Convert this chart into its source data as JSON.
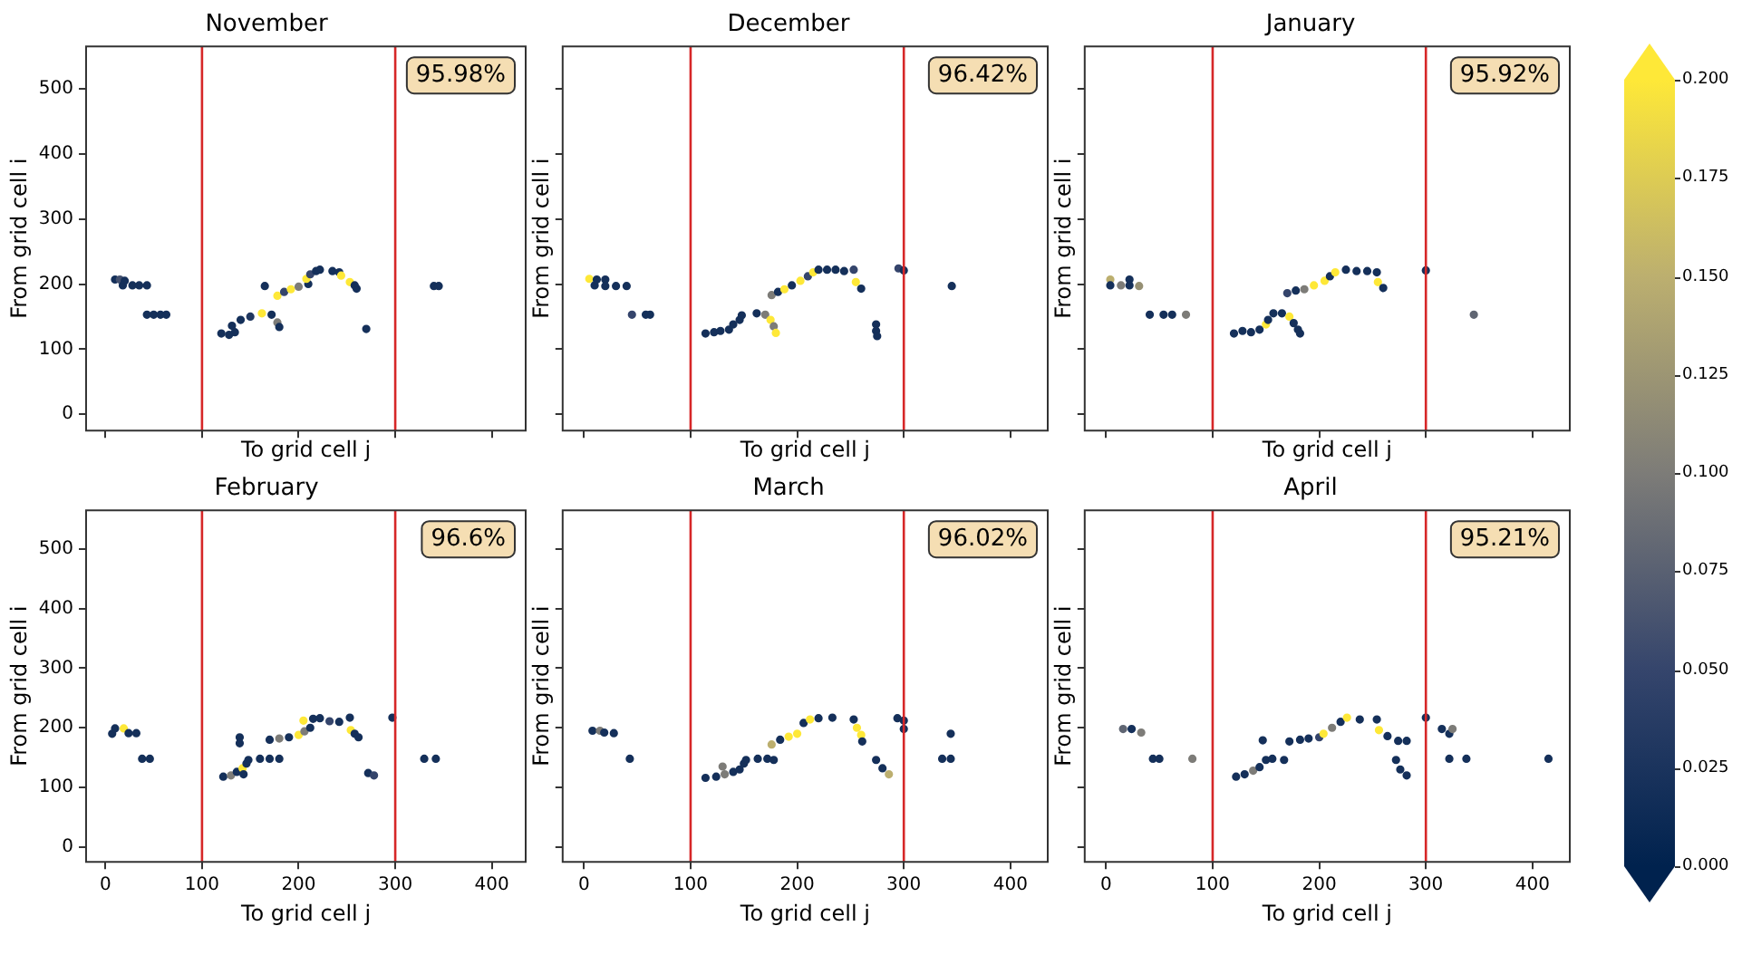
{
  "chart_data": [
    {
      "type": "scatter",
      "title": "November",
      "xlabel": "To grid cell j",
      "ylabel": "From grid cell i",
      "marker": "circle",
      "tick_labels": "y",
      "xlim": [
        -20,
        435
      ],
      "ylim": [
        -25,
        565
      ],
      "xticks": [
        0,
        100,
        200,
        300,
        400
      ],
      "yticks": [
        0,
        100,
        200,
        300,
        400,
        500
      ],
      "clim": [
        0,
        0.2
      ],
      "cticks": [
        {
          "value": 0,
          "label": "0.000"
        },
        {
          "value": 0.025,
          "label": "0.025"
        },
        {
          "value": 0.05,
          "label": "0.050"
        },
        {
          "value": 0.075,
          "label": "0.075"
        },
        {
          "value": 0.1,
          "label": "0.100"
        },
        {
          "value": 0.125,
          "label": "0.125"
        },
        {
          "value": 0.15,
          "label": "0.150"
        },
        {
          "value": 0.175,
          "label": "0.175"
        },
        {
          "value": 0.2,
          "label": "0.200"
        }
      ],
      "ref_lines": [
        {
          "axis": "x",
          "value": 100,
          "color": "#d62728"
        },
        {
          "axis": "x",
          "value": 300,
          "color": "#d62728"
        }
      ],
      "annotations": [
        "95.98%"
      ],
      "x": [
        10,
        15,
        20,
        18,
        28,
        35,
        43,
        43,
        50,
        57,
        63,
        120,
        128,
        134,
        131,
        140,
        150,
        162,
        172,
        178,
        180,
        165,
        178,
        185,
        192,
        200,
        210,
        208,
        212,
        218,
        222,
        235,
        242,
        244,
        253,
        258,
        260,
        270,
        340,
        345
      ],
      "values": [
        207,
        207,
        205,
        198,
        198,
        198,
        198,
        153,
        153,
        153,
        153,
        124,
        122,
        126,
        136,
        145,
        150,
        155,
        153,
        141,
        134,
        197,
        182,
        188,
        192,
        196,
        200,
        208,
        215,
        220,
        222,
        220,
        218,
        213,
        203,
        198,
        193,
        131,
        197,
        197
      ],
      "cvalues": [
        0.02,
        0.06,
        0.02,
        0.02,
        0.02,
        0.02,
        0.02,
        0.02,
        0.02,
        0.02,
        0.02,
        0.02,
        0.02,
        0.02,
        0.02,
        0.02,
        0.03,
        0.2,
        0.02,
        0.1,
        0.02,
        0.02,
        0.2,
        0.05,
        0.2,
        0.1,
        0.02,
        0.2,
        0.05,
        0.02,
        0.02,
        0.02,
        0.02,
        0.2,
        0.2,
        0.02,
        0.02,
        0.02,
        0.02,
        0.02
      ]
    },
    {
      "type": "scatter",
      "title": "December",
      "xlabel": "To grid cell j",
      "ylabel": "From grid cell i",
      "marker": "circle",
      "tick_labels": false,
      "xlim": [
        -20,
        435
      ],
      "ylim": [
        -25,
        565
      ],
      "xticks": [
        0,
        100,
        200,
        300,
        400
      ],
      "yticks": [
        0,
        100,
        200,
        300,
        400,
        500
      ],
      "ref_lines": [
        {
          "axis": "x",
          "value": 100,
          "color": "#d62728"
        },
        {
          "axis": "x",
          "value": 300,
          "color": "#d62728"
        }
      ],
      "annotations": [
        "96.42%"
      ],
      "x": [
        5,
        12,
        20,
        10,
        20,
        30,
        40,
        45,
        58,
        62,
        114,
        122,
        128,
        136,
        140,
        146,
        148,
        162,
        170,
        175,
        178,
        180,
        176,
        182,
        188,
        195,
        203,
        210,
        215,
        220,
        228,
        236,
        244,
        253,
        255,
        260,
        274,
        274,
        275,
        295,
        300,
        345
      ],
      "values": [
        208,
        207,
        207,
        198,
        197,
        197,
        197,
        153,
        153,
        153,
        124,
        126,
        128,
        130,
        138,
        145,
        152,
        155,
        153,
        145,
        135,
        125,
        183,
        188,
        192,
        198,
        205,
        212,
        218,
        222,
        222,
        222,
        220,
        222,
        203,
        193,
        138,
        128,
        120,
        224,
        221,
        197
      ],
      "colors": [
        "#fee838",
        "#15305a",
        "#15305a",
        "#15305a",
        "#15305a",
        "#15305a",
        "#15305a",
        "#35456c",
        "#15305a",
        "#15305a",
        "#15305a",
        "#15305a",
        "#15305a",
        "#15305a",
        "#15305a",
        "#15305a",
        "#15305a",
        "#15305a",
        "#7d7c78",
        "#fee838",
        "#7d7c78",
        "#fee838",
        "#7d7c78",
        "#15305a",
        "#fee838",
        "#15305a",
        "#fee838",
        "#35456c",
        "#fee838",
        "#15305a",
        "#15305a",
        "#15305a",
        "#15305a",
        "#35456c",
        "#fee838",
        "#15305a",
        "#15305a",
        "#15305a",
        "#15305a",
        "#35456c",
        "#15305a",
        "#15305a"
      ]
    },
    {
      "type": "scatter",
      "title": "January",
      "xlabel": "To grid cell j",
      "ylabel": "From grid cell i",
      "marker": "circle",
      "tick_labels": false,
      "xlim": [
        -20,
        435
      ],
      "ylim": [
        -25,
        565
      ],
      "xticks": [
        0,
        100,
        200,
        300,
        400
      ],
      "yticks": [
        0,
        100,
        200,
        300,
        400,
        500
      ],
      "ref_lines": [
        {
          "axis": "x",
          "value": 100,
          "color": "#d62728"
        },
        {
          "axis": "x",
          "value": 300,
          "color": "#d62728"
        }
      ],
      "annotations": [
        "95.92%"
      ],
      "x": [
        4,
        22,
        4,
        14,
        22,
        31,
        41,
        54,
        62,
        75,
        120,
        128,
        136,
        144,
        150,
        152,
        157,
        165,
        172,
        176,
        180,
        182,
        170,
        178,
        186,
        195,
        205,
        210,
        215,
        225,
        235,
        245,
        254,
        255,
        260,
        300,
        345
      ],
      "values": [
        207,
        207,
        198,
        198,
        198,
        197,
        153,
        153,
        153,
        153,
        124,
        128,
        126,
        130,
        138,
        145,
        155,
        155,
        150,
        140,
        130,
        124,
        186,
        190,
        192,
        198,
        205,
        212,
        218,
        222,
        220,
        220,
        218,
        203,
        194,
        221,
        153
      ],
      "colors": [
        "#bcaf6f",
        "#15305a",
        "#15305a",
        "#7d7c78",
        "#15305a",
        "#969074",
        "#15305a",
        "#15305a",
        "#15305a",
        "#7d7c78",
        "#15305a",
        "#15305a",
        "#15305a",
        "#15305a",
        "#fee838",
        "#15305a",
        "#15305a",
        "#15305a",
        "#fee838",
        "#15305a",
        "#15305a",
        "#15305a",
        "#35456c",
        "#15305a",
        "#7d7c78",
        "#fee838",
        "#fee838",
        "#15305a",
        "#fee838",
        "#15305a",
        "#15305a",
        "#15305a",
        "#15305a",
        "#fee838",
        "#15305a",
        "#15305a",
        "#606673"
      ]
    },
    {
      "type": "scatter",
      "title": "February",
      "xlabel": "To grid cell j",
      "ylabel": "From grid cell i",
      "marker": "circle",
      "xlim": [
        -20,
        435
      ],
      "ylim": [
        -25,
        565
      ],
      "xticks": [
        0,
        100,
        200,
        300,
        400
      ],
      "yticks": [
        0,
        100,
        200,
        300,
        400,
        500
      ],
      "ref_lines": [
        {
          "axis": "x",
          "value": 100,
          "color": "#d62728"
        },
        {
          "axis": "x",
          "value": 300,
          "color": "#d62728"
        }
      ],
      "annotations": [
        "96.6%"
      ],
      "x": [
        7,
        10,
        19,
        24,
        32,
        38,
        46,
        139,
        139,
        122,
        130,
        136,
        142,
        146,
        148,
        143,
        160,
        170,
        180,
        170,
        180,
        190,
        200,
        206,
        212,
        205,
        215,
        222,
        232,
        242,
        253,
        254,
        258,
        262,
        272,
        278,
        297,
        330,
        342
      ],
      "values": [
        190,
        199,
        199,
        191,
        191,
        148,
        148,
        184,
        174,
        118,
        120,
        126,
        132,
        140,
        146,
        122,
        148,
        148,
        148,
        180,
        182,
        184,
        188,
        194,
        200,
        212,
        215,
        216,
        211,
        210,
        217,
        196,
        190,
        184,
        124,
        120,
        217,
        148,
        148
      ],
      "colors": [
        "#15305a",
        "#15305a",
        "#fee838",
        "#15305a",
        "#15305a",
        "#15305a",
        "#15305a",
        "#15305a",
        "#15305a",
        "#15305a",
        "#7d7c78",
        "#15305a",
        "#fee838",
        "#15305a",
        "#15305a",
        "#15305a",
        "#15305a",
        "#15305a",
        "#15305a",
        "#15305a",
        "#7d7c78",
        "#15305a",
        "#fee838",
        "#7d7c78",
        "#15305a",
        "#fee838",
        "#15305a",
        "#15305a",
        "#35456c",
        "#15305a",
        "#15305a",
        "#fee838",
        "#15305a",
        "#15305a",
        "#15305a",
        "#35456c",
        "#15305a",
        "#15305a",
        "#15305a"
      ]
    },
    {
      "type": "scatter",
      "title": "March",
      "xlabel": "To grid cell j",
      "ylabel": "From grid cell i",
      "marker": "circle",
      "tick_labels": "x",
      "xlim": [
        -20,
        435
      ],
      "ylim": [
        -25,
        565
      ],
      "xticks": [
        0,
        100,
        200,
        300,
        400
      ],
      "yticks": [
        0,
        100,
        200,
        300,
        400,
        500
      ],
      "ref_lines": [
        {
          "axis": "x",
          "value": 100,
          "color": "#d62728"
        },
        {
          "axis": "x",
          "value": 300,
          "color": "#d62728"
        }
      ],
      "annotations": [
        "96.02%"
      ],
      "x": [
        8,
        15,
        19,
        28,
        43,
        114,
        124,
        132,
        140,
        146,
        150,
        152,
        130,
        163,
        172,
        178,
        176,
        184,
        192,
        200,
        206,
        212,
        220,
        233,
        253,
        256,
        260,
        261,
        274,
        280,
        286,
        294,
        300,
        300,
        336,
        344,
        344
      ],
      "values": [
        195,
        195,
        192,
        191,
        148,
        116,
        118,
        122,
        126,
        130,
        140,
        146,
        135,
        148,
        148,
        146,
        172,
        180,
        185,
        190,
        208,
        214,
        216,
        217,
        214,
        200,
        188,
        177,
        146,
        132,
        122,
        216,
        212,
        198,
        148,
        148,
        190
      ],
      "colors": [
        "#15305a",
        "#7d7c78",
        "#15305a",
        "#15305a",
        "#15305a",
        "#15305a",
        "#15305a",
        "#7d7c78",
        "#15305a",
        "#15305a",
        "#15305a",
        "#15305a",
        "#7d7c78",
        "#15305a",
        "#15305a",
        "#15305a",
        "#bcaf6f",
        "#15305a",
        "#fee838",
        "#fee838",
        "#15305a",
        "#fee838",
        "#15305a",
        "#15305a",
        "#15305a",
        "#fee838",
        "#fee838",
        "#15305a",
        "#15305a",
        "#15305a",
        "#bcaf6f",
        "#15305a",
        "#15305a",
        "#15305a",
        "#15305a",
        "#15305a",
        "#15305a"
      ]
    },
    {
      "type": "scatter",
      "title": "April",
      "xlabel": "To grid cell j",
      "ylabel": "From grid cell i",
      "marker": "circle",
      "tick_labels": "x",
      "xlim": [
        -20,
        435
      ],
      "ylim": [
        -25,
        565
      ],
      "xticks": [
        0,
        100,
        200,
        300,
        400
      ],
      "yticks": [
        0,
        100,
        200,
        300,
        400,
        500
      ],
      "ref_lines": [
        {
          "axis": "x",
          "value": 100,
          "color": "#d62728"
        },
        {
          "axis": "x",
          "value": 300,
          "color": "#d62728"
        }
      ],
      "annotations": [
        "95.21%"
      ],
      "x": [
        16,
        24,
        33,
        44,
        50,
        81,
        122,
        130,
        138,
        144,
        150,
        156,
        167,
        147,
        172,
        182,
        190,
        200,
        204,
        212,
        220,
        226,
        238,
        254,
        256,
        264,
        274,
        282,
        272,
        276,
        282,
        300,
        315,
        322,
        325,
        322,
        338,
        415
      ],
      "values": [
        198,
        198,
        192,
        148,
        148,
        148,
        118,
        122,
        128,
        134,
        146,
        148,
        146,
        179,
        177,
        180,
        182,
        184,
        190,
        200,
        210,
        217,
        214,
        214,
        196,
        186,
        178,
        178,
        146,
        130,
        120,
        217,
        198,
        190,
        198,
        148,
        148,
        148
      ],
      "colors": [
        "#606673",
        "#15305a",
        "#7d7c78",
        "#15305a",
        "#15305a",
        "#7d7c78",
        "#15305a",
        "#15305a",
        "#7d7c78",
        "#15305a",
        "#15305a",
        "#15305a",
        "#15305a",
        "#15305a",
        "#15305a",
        "#15305a",
        "#15305a",
        "#35456c",
        "#fee838",
        "#7d7c78",
        "#15305a",
        "#fee838",
        "#15305a",
        "#15305a",
        "#fee838",
        "#15305a",
        "#15305a",
        "#15305a",
        "#15305a",
        "#15305a",
        "#15305a",
        "#15305a",
        "#15305a",
        "#15305a",
        "#7d7c78",
        "#15305a",
        "#15305a",
        "#15305a"
      ]
    }
  ]
}
